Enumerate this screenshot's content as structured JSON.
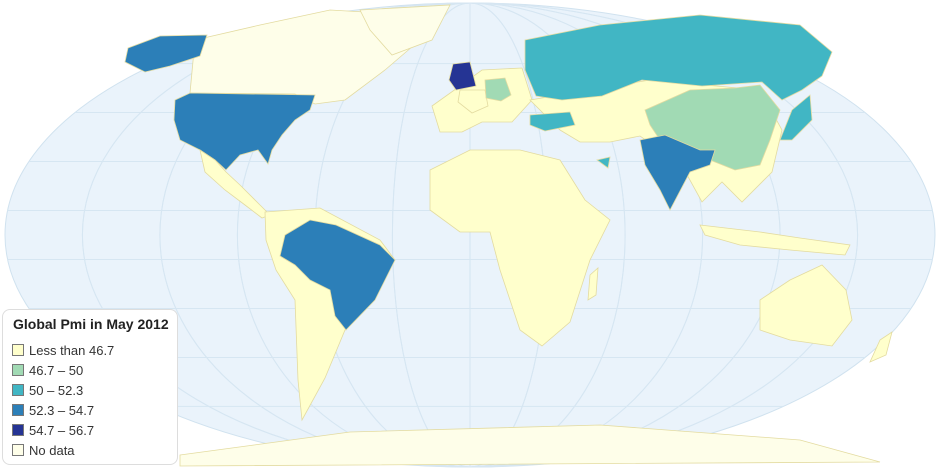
{
  "legend": {
    "title": "Global Pmi in May 2012",
    "items": [
      {
        "label": "Less than 46.7",
        "color": "#ffffcc"
      },
      {
        "label": "46.7 – 50",
        "color": "#a1dab4"
      },
      {
        "label": "50 – 52.3",
        "color": "#41b6c4"
      },
      {
        "label": "52.3 – 54.7",
        "color": "#2c7fb8"
      },
      {
        "label": "54.7 – 56.7",
        "color": "#253494"
      },
      {
        "label": "No data",
        "color": "#fefee9"
      }
    ]
  },
  "colors": {
    "ocean": "#eaf3fb",
    "graticule": "#d6e6f2",
    "land_border": "#e3dba0"
  }
}
